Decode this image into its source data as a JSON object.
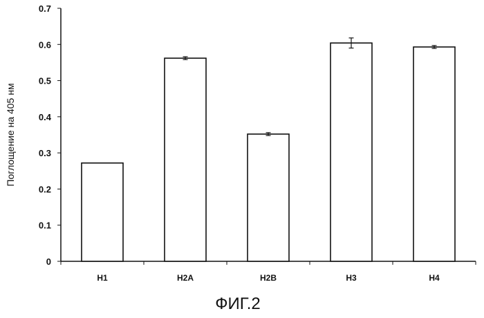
{
  "chart_data": {
    "type": "bar",
    "categories": [
      "H1",
      "H2A",
      "H2B",
      "H3",
      "H4"
    ],
    "values": [
      0.272,
      0.562,
      0.352,
      0.604,
      0.593
    ],
    "errors": [
      0.0,
      0.004,
      0.004,
      0.014,
      0.004
    ],
    "ylabel": "Поглощение на 405 нм",
    "xlabel": "",
    "ylim": [
      0,
      0.7
    ],
    "yticks": [
      "0",
      "0.1",
      "0.2",
      "0.3",
      "0.4",
      "0.5",
      "0.6",
      "0.7"
    ],
    "grid": false,
    "legend": "none",
    "bar_fill": "#ffffff",
    "bar_stroke": "#111111"
  },
  "caption": "ФИГ.2"
}
